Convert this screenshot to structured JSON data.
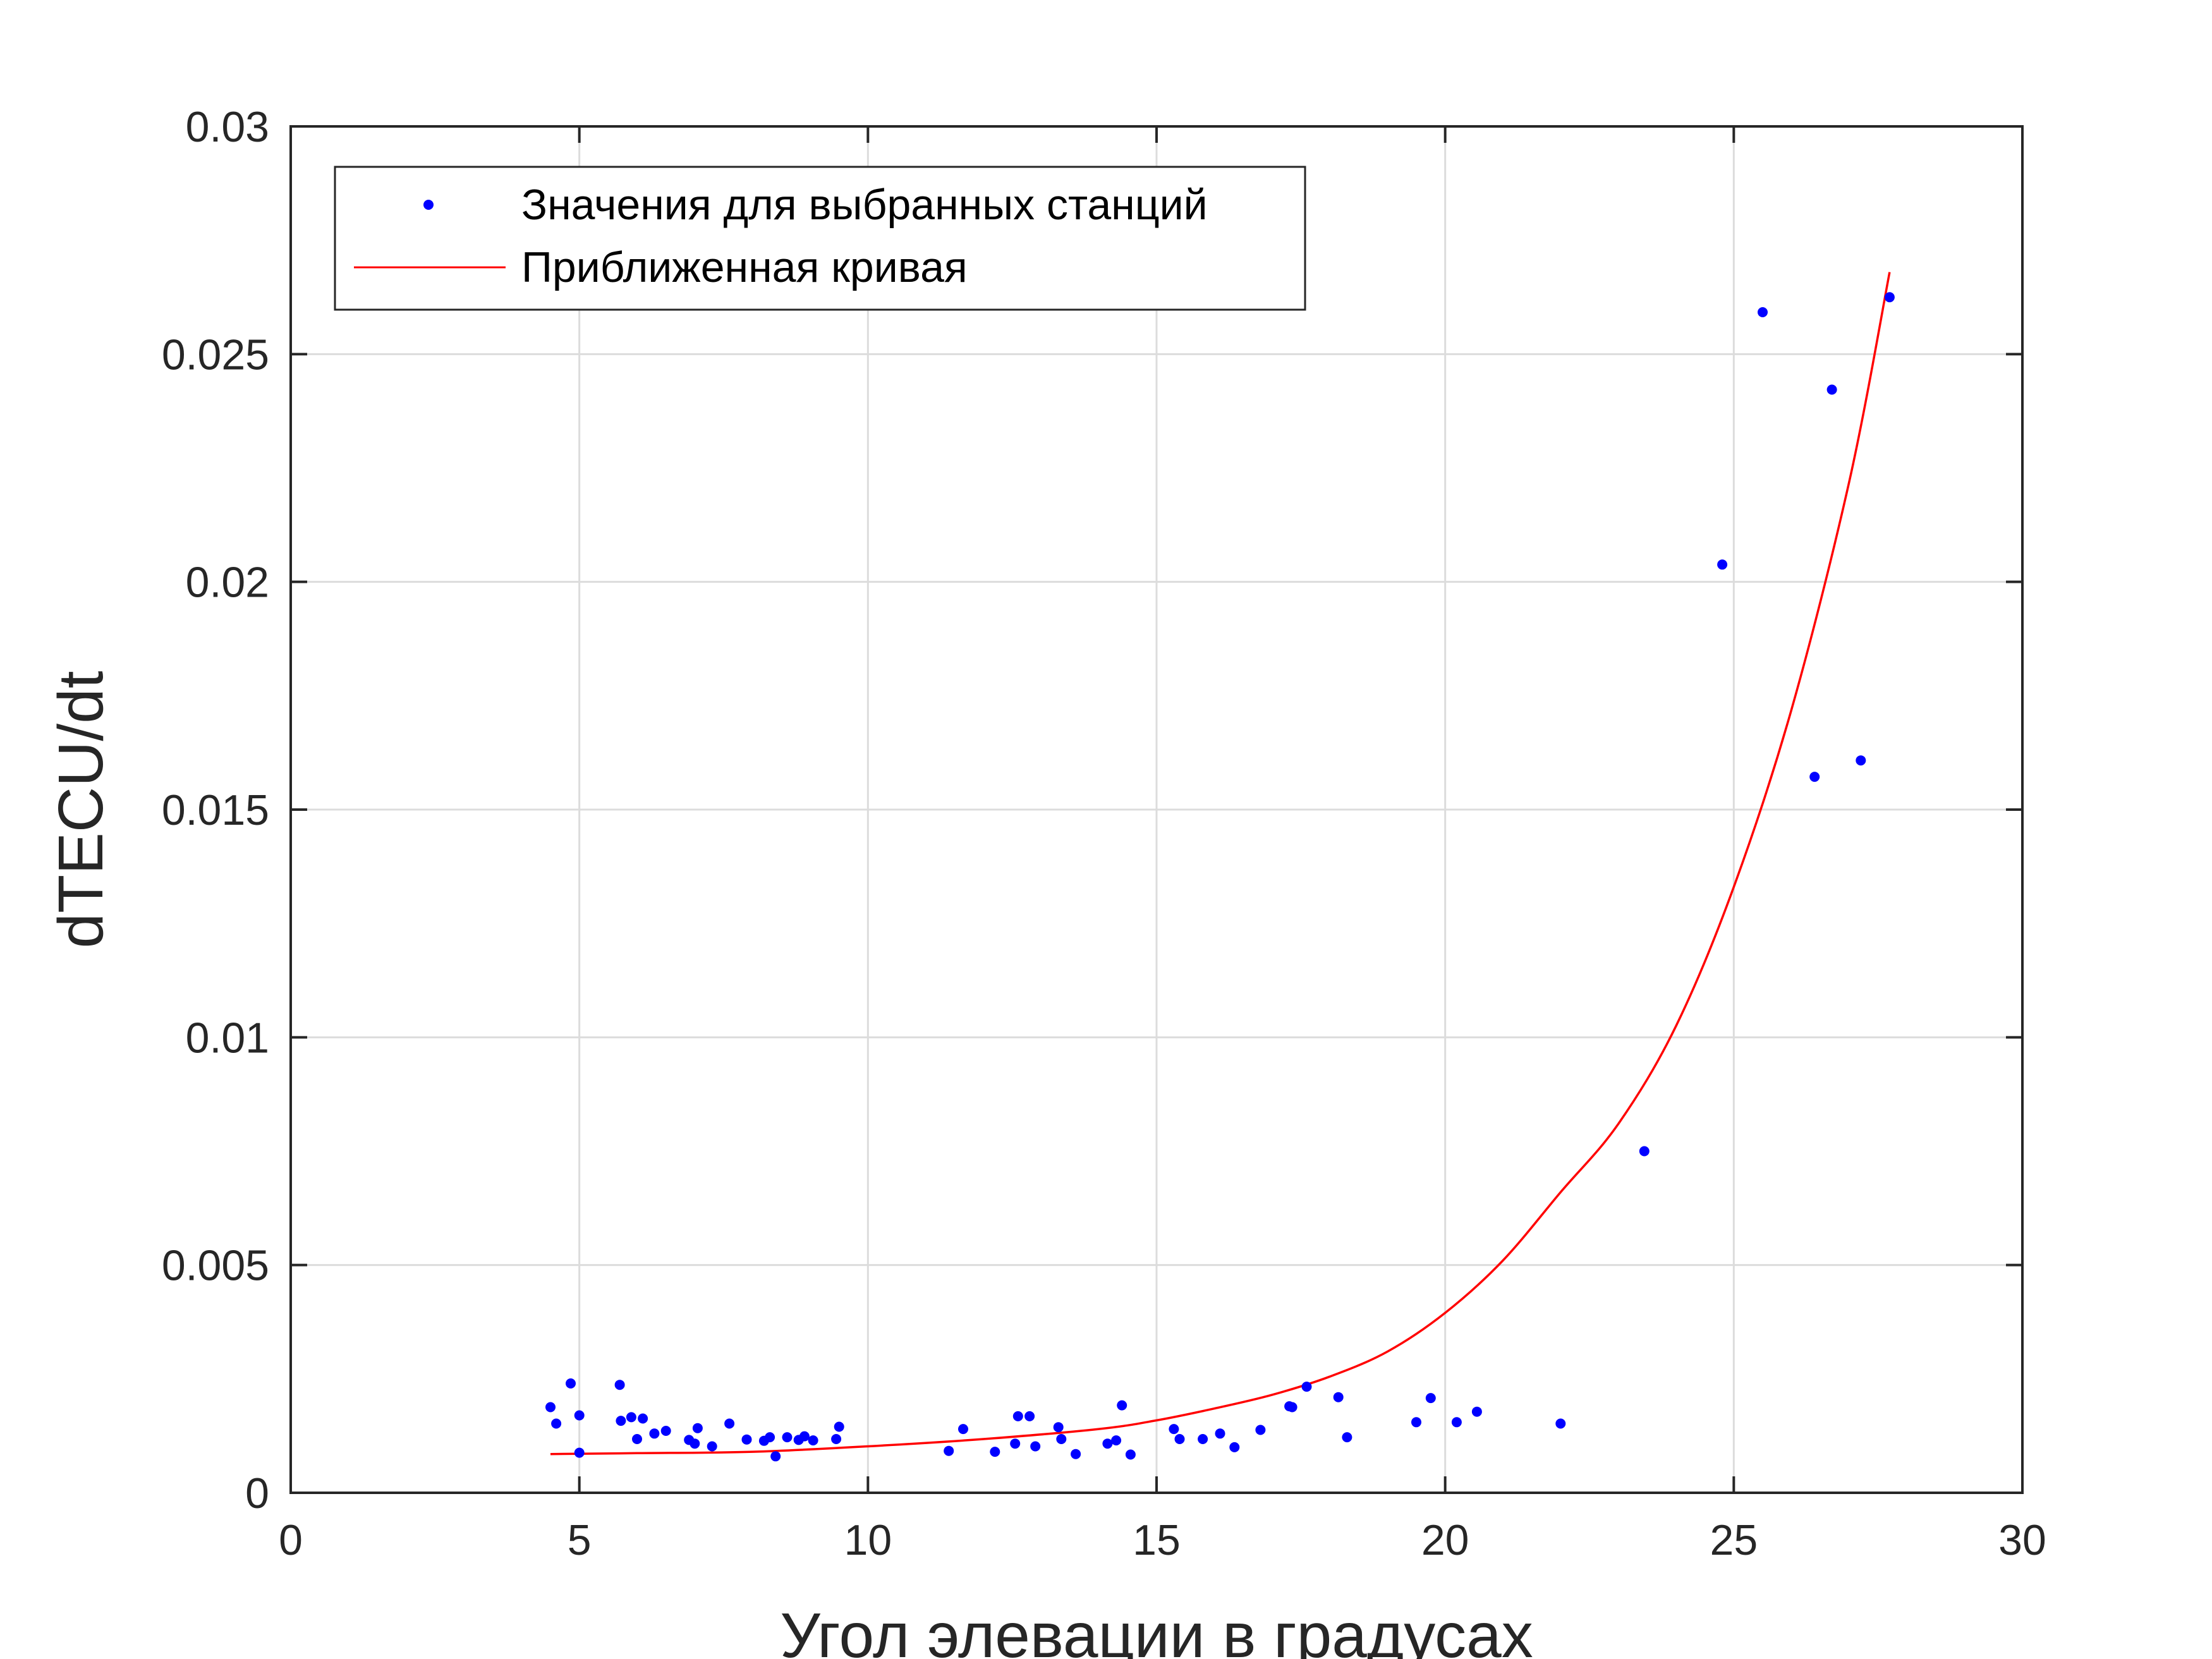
{
  "chart_data": {
    "type": "scatter",
    "xlabel": "Угол элевации в градусах",
    "ylabel": "dTECU/dt",
    "xlim": [
      0,
      30
    ],
    "ylim": [
      0,
      0.03
    ],
    "xticks": [
      0,
      5,
      10,
      15,
      20,
      25,
      30
    ],
    "yticks": [
      0,
      0.005,
      0.01,
      0.015,
      0.02,
      0.025,
      0.03
    ],
    "xtick_labels": [
      "0",
      "5",
      "10",
      "15",
      "20",
      "25",
      "30"
    ],
    "ytick_labels": [
      "0",
      "0.005",
      "0.01",
      "0.015",
      "0.02",
      "0.025",
      "0.03"
    ],
    "grid": true,
    "legend_position": "top-left",
    "series": [
      {
        "name": "Значения для выбранных станций",
        "kind": "scatter",
        "color": "#0000ff",
        "points": [
          [
            4.5,
            0.00188
          ],
          [
            4.6,
            0.00152
          ],
          [
            4.85,
            0.0024
          ],
          [
            5.0,
            0.0017
          ],
          [
            5.0,
            0.00088
          ],
          [
            5.7,
            0.00237
          ],
          [
            5.72,
            0.00158
          ],
          [
            5.9,
            0.00166
          ],
          [
            6.0,
            0.00118
          ],
          [
            6.1,
            0.00163
          ],
          [
            6.3,
            0.0013
          ],
          [
            6.5,
            0.00136
          ],
          [
            6.9,
            0.00116
          ],
          [
            7.0,
            0.00108
          ],
          [
            7.05,
            0.00142
          ],
          [
            7.3,
            0.00102
          ],
          [
            7.6,
            0.00152
          ],
          [
            7.9,
            0.00117
          ],
          [
            8.2,
            0.00114
          ],
          [
            8.3,
            0.00122
          ],
          [
            8.4,
            0.0008
          ],
          [
            8.6,
            0.00122
          ],
          [
            8.8,
            0.00116
          ],
          [
            8.9,
            0.00124
          ],
          [
            9.05,
            0.00115
          ],
          [
            9.45,
            0.00118
          ],
          [
            9.5,
            0.00145
          ],
          [
            11.4,
            0.00092
          ],
          [
            11.65,
            0.0014
          ],
          [
            12.2,
            0.0009
          ],
          [
            12.55,
            0.00108
          ],
          [
            12.6,
            0.00168
          ],
          [
            12.8,
            0.00168
          ],
          [
            12.9,
            0.00102
          ],
          [
            13.3,
            0.00144
          ],
          [
            13.35,
            0.00118
          ],
          [
            13.6,
            0.00085
          ],
          [
            14.15,
            0.00108
          ],
          [
            14.3,
            0.00115
          ],
          [
            14.4,
            0.00192
          ],
          [
            14.55,
            0.00084
          ],
          [
            15.3,
            0.0014
          ],
          [
            15.4,
            0.00118
          ],
          [
            15.8,
            0.00118
          ],
          [
            16.1,
            0.0013
          ],
          [
            16.35,
            0.001
          ],
          [
            16.8,
            0.00138
          ],
          [
            17.3,
            0.0019
          ],
          [
            17.35,
            0.00188
          ],
          [
            17.6,
            0.00233
          ],
          [
            18.15,
            0.0021
          ],
          [
            18.3,
            0.00122
          ],
          [
            19.5,
            0.00155
          ],
          [
            19.75,
            0.00208
          ],
          [
            20.2,
            0.00155
          ],
          [
            20.55,
            0.00178
          ],
          [
            22.0,
            0.00152
          ],
          [
            23.45,
            0.0075
          ],
          [
            24.8,
            0.02038
          ],
          [
            25.5,
            0.02592
          ],
          [
            26.4,
            0.01572
          ],
          [
            26.7,
            0.02422
          ],
          [
            27.2,
            0.01608
          ],
          [
            27.7,
            0.02625
          ]
        ]
      },
      {
        "name": "Приближенная кривая",
        "kind": "line",
        "color": "#ff0000",
        "points": [
          [
            4.5,
            0.00085
          ],
          [
            6.0,
            0.00087
          ],
          [
            8.0,
            0.0009
          ],
          [
            10.0,
            0.00102
          ],
          [
            12.0,
            0.00118
          ],
          [
            14.0,
            0.0014
          ],
          [
            15.0,
            0.00159
          ],
          [
            16.0,
            0.00185
          ],
          [
            17.0,
            0.00215
          ],
          [
            18.0,
            0.00255
          ],
          [
            19.0,
            0.0031
          ],
          [
            20.0,
            0.00395
          ],
          [
            21.0,
            0.0051
          ],
          [
            22.0,
            0.0066
          ],
          [
            23.0,
            0.0081
          ],
          [
            24.0,
            0.01025
          ],
          [
            25.0,
            0.0133
          ],
          [
            26.0,
            0.0172
          ],
          [
            27.0,
            0.0222
          ],
          [
            27.7,
            0.0268
          ]
        ]
      }
    ]
  }
}
